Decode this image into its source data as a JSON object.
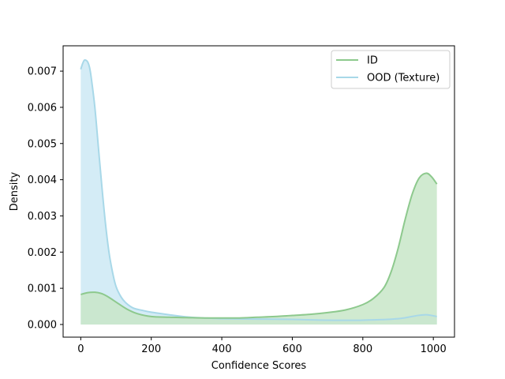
{
  "chart_data": {
    "type": "area",
    "xlabel": "Confidence Scores",
    "ylabel": "Density",
    "xlim": [
      -50,
      1060
    ],
    "ylim": [
      -0.00035,
      0.0077
    ],
    "xticks": [
      0,
      200,
      400,
      600,
      800,
      1000
    ],
    "xtick_labels": [
      "0",
      "200",
      "400",
      "600",
      "800",
      "1000"
    ],
    "yticks": [
      0,
      0.001,
      0.002,
      0.003,
      0.004,
      0.005,
      0.006,
      0.007
    ],
    "ytick_labels": [
      "0.000",
      "0.001",
      "0.002",
      "0.003",
      "0.004",
      "0.005",
      "0.006",
      "0.007"
    ],
    "grid": false,
    "legend_position": "top-right",
    "series": [
      {
        "name": "ID",
        "color": "#8dc98d",
        "fill": "#c8e6c8",
        "x": [
          0,
          20,
          40,
          60,
          80,
          100,
          130,
          160,
          200,
          250,
          300,
          350,
          400,
          450,
          500,
          550,
          600,
          650,
          700,
          750,
          800,
          830,
          860,
          880,
          900,
          920,
          940,
          960,
          980,
          995,
          1010
        ],
        "y": [
          0.00083,
          0.00088,
          0.00089,
          0.00085,
          0.00075,
          0.00062,
          0.00043,
          0.0003,
          0.00022,
          0.0002,
          0.00019,
          0.00018,
          0.00018,
          0.00018,
          0.0002,
          0.00022,
          0.00025,
          0.00028,
          0.00033,
          0.0004,
          0.00055,
          0.00072,
          0.00102,
          0.00145,
          0.0021,
          0.0029,
          0.0036,
          0.00405,
          0.00418,
          0.00408,
          0.00388
        ]
      },
      {
        "name": "OOD (Texture)",
        "color": "#a8d8e8",
        "fill": "#cde9f4",
        "x": [
          0,
          5,
          10,
          15,
          20,
          25,
          30,
          40,
          50,
          60,
          70,
          80,
          90,
          100,
          115,
          130,
          150,
          175,
          200,
          250,
          300,
          350,
          400,
          500,
          600,
          700,
          800,
          900,
          950,
          980,
          1010
        ],
        "y": [
          0.00705,
          0.0072,
          0.0073,
          0.0073,
          0.00725,
          0.0071,
          0.0068,
          0.006,
          0.0049,
          0.0038,
          0.0028,
          0.002,
          0.00145,
          0.00105,
          0.00075,
          0.00058,
          0.00045,
          0.00039,
          0.00034,
          0.00027,
          0.00021,
          0.00018,
          0.00016,
          0.00015,
          0.00014,
          0.00012,
          0.00012,
          0.00016,
          0.00024,
          0.00027,
          0.00022
        ]
      }
    ]
  }
}
